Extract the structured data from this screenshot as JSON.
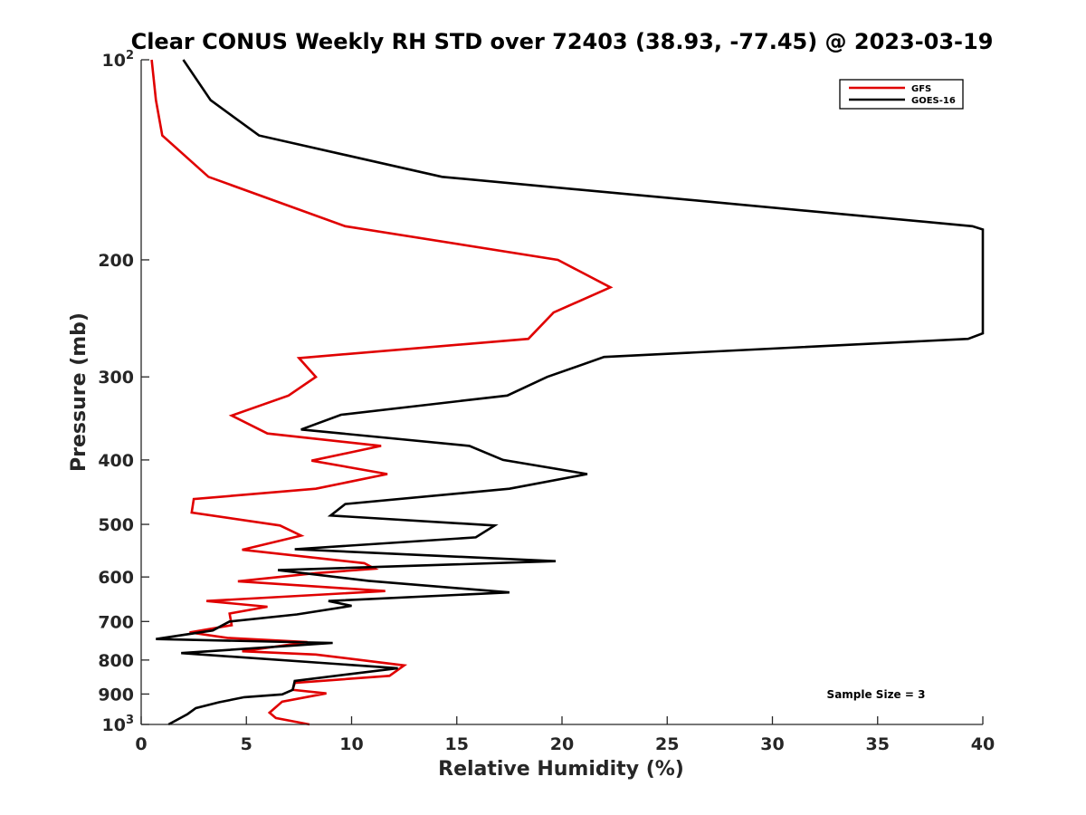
{
  "chart_data": {
    "type": "line",
    "title": "Clear CONUS Weekly RH STD over 72403 (38.93, -77.45) @ 2023-03-19",
    "xlabel": "Relative Humidity (%)",
    "ylabel": "Pressure (mb)",
    "xlim": [
      0,
      40
    ],
    "ylim": [
      100,
      1000
    ],
    "yscale": "log",
    "y_reversed": true,
    "x_ticks": [
      "0",
      "5",
      "10",
      "15",
      "20",
      "25",
      "30",
      "35",
      "40"
    ],
    "y_ticks": [
      {
        "value": 100,
        "base": "10",
        "exp": "2"
      },
      {
        "value": 200,
        "label": "200"
      },
      {
        "value": 300,
        "label": "300"
      },
      {
        "value": 400,
        "label": "400"
      },
      {
        "value": 500,
        "label": "500"
      },
      {
        "value": 600,
        "label": "600"
      },
      {
        "value": 700,
        "label": "700"
      },
      {
        "value": 800,
        "label": "800"
      },
      {
        "value": 900,
        "label": "900"
      },
      {
        "value": 1000,
        "base": "10",
        "exp": "3"
      }
    ],
    "grid": false,
    "legend_position": "top-right",
    "annotation": "Sample Size = 3",
    "series": [
      {
        "name": "GFS",
        "color": "#e00000",
        "points": [
          [
            0.5,
            100
          ],
          [
            0.7,
            115
          ],
          [
            1.0,
            130
          ],
          [
            3.2,
            150
          ],
          [
            9.7,
            178
          ],
          [
            19.8,
            200
          ],
          [
            22.3,
            220
          ],
          [
            19.6,
            240
          ],
          [
            18.4,
            263
          ],
          [
            7.5,
            281
          ],
          [
            8.3,
            300
          ],
          [
            7.0,
            320
          ],
          [
            4.3,
            343
          ],
          [
            6.0,
            365
          ],
          [
            11.4,
            381
          ],
          [
            8.1,
            401
          ],
          [
            11.7,
            420
          ],
          [
            8.3,
            442
          ],
          [
            2.5,
            458
          ],
          [
            2.4,
            480
          ],
          [
            6.6,
            502
          ],
          [
            7.6,
            520
          ],
          [
            4.8,
            546
          ],
          [
            10.6,
            572
          ],
          [
            11.1,
            583
          ],
          [
            8.3,
            592
          ],
          [
            4.6,
            609
          ],
          [
            11.6,
            630
          ],
          [
            3.1,
            652
          ],
          [
            6.0,
            665
          ],
          [
            4.2,
            681
          ],
          [
            4.3,
            709
          ],
          [
            2.3,
            727
          ],
          [
            4.1,
            741
          ],
          [
            7.9,
            752
          ],
          [
            4.8,
            776
          ],
          [
            8.3,
            785
          ],
          [
            12.5,
            815
          ],
          [
            11.8,
            845
          ],
          [
            7.3,
            866
          ],
          [
            7.2,
            887
          ],
          [
            8.8,
            898
          ],
          [
            6.7,
            924
          ],
          [
            6.1,
            960
          ],
          [
            6.4,
            978
          ],
          [
            8.0,
            1000
          ]
        ]
      },
      {
        "name": "GOES-16",
        "color": "#000000",
        "points": [
          [
            2.0,
            100
          ],
          [
            3.3,
            115
          ],
          [
            5.6,
            130
          ],
          [
            14.3,
            150
          ],
          [
            39.5,
            178
          ],
          [
            40.0,
            180
          ],
          [
            40.0,
            258
          ],
          [
            39.3,
            263
          ],
          [
            22.0,
            280
          ],
          [
            19.3,
            300
          ],
          [
            17.4,
            320
          ],
          [
            9.5,
            342
          ],
          [
            7.6,
            360
          ],
          [
            15.6,
            381
          ],
          [
            17.2,
            400
          ],
          [
            21.2,
            420
          ],
          [
            17.5,
            442
          ],
          [
            9.7,
            466
          ],
          [
            9.0,
            485
          ],
          [
            16.8,
            502
          ],
          [
            15.9,
            523
          ],
          [
            7.3,
            545
          ],
          [
            19.7,
            568
          ],
          [
            6.5,
            586
          ],
          [
            10.8,
            608
          ],
          [
            17.5,
            633
          ],
          [
            8.9,
            652
          ],
          [
            10.0,
            663
          ],
          [
            7.4,
            683
          ],
          [
            4.2,
            700
          ],
          [
            3.4,
            722
          ],
          [
            0.7,
            744
          ],
          [
            9.1,
            754
          ],
          [
            1.9,
            781
          ],
          [
            12.2,
            823
          ],
          [
            7.3,
            860
          ],
          [
            7.2,
            887
          ],
          [
            6.7,
            901
          ],
          [
            4.9,
            910
          ],
          [
            3.7,
            926
          ],
          [
            2.6,
            945
          ],
          [
            2.2,
            965
          ],
          [
            1.3,
            1000
          ]
        ]
      }
    ]
  }
}
